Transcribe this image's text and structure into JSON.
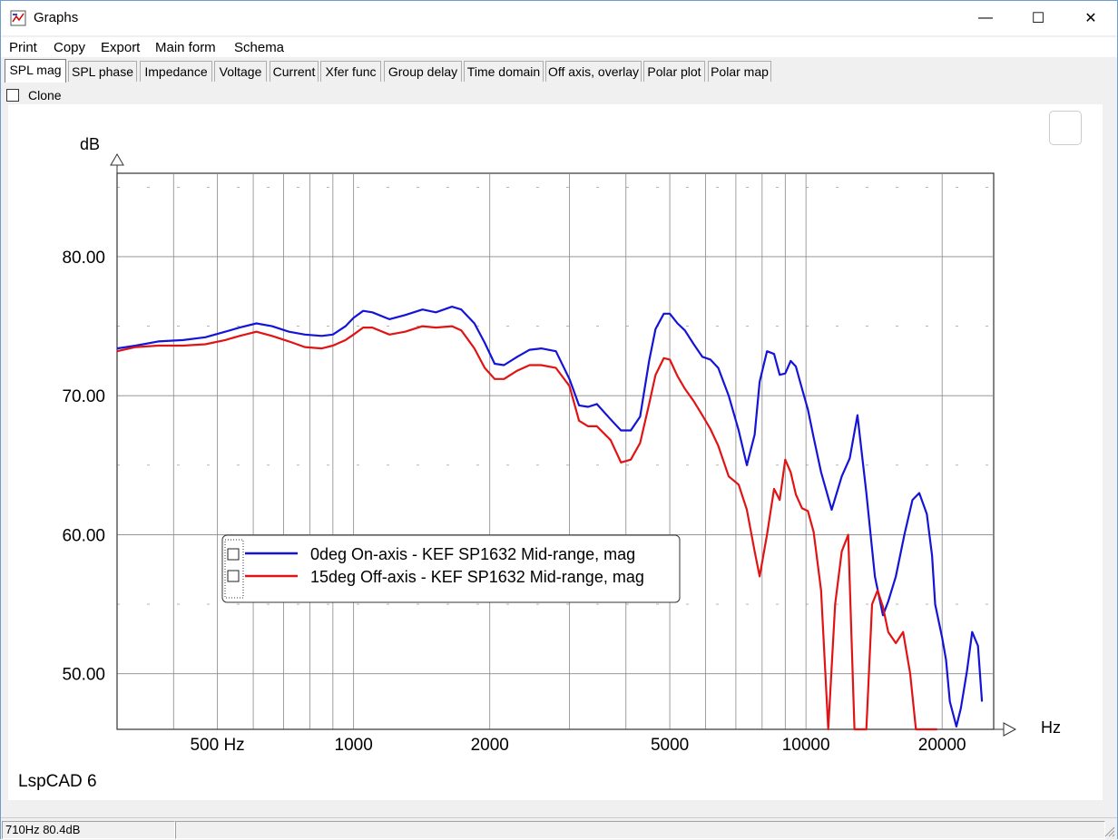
{
  "window": {
    "title": "Graphs",
    "minimize": "—",
    "maximize": "☐",
    "close": "✕"
  },
  "menu": [
    "Print",
    "Copy",
    "Export",
    "Main form",
    "Schema"
  ],
  "tabs": [
    "SPL mag",
    "SPL phase",
    "Impedance",
    "Voltage",
    "Current",
    "Xfer func",
    "Group delay",
    "Time domain",
    "Off axis, overlay",
    "Polar plot",
    "Polar map"
  ],
  "active_tab": "SPL mag",
  "clone_label": "Clone",
  "watermark": "LspCAD 6",
  "status": {
    "readout": "710Hz 80.4dB",
    "secondary": ""
  },
  "colors": {
    "series1": "#1414d8",
    "series2": "#e01414",
    "grid": "#888888"
  },
  "chart_data": {
    "type": "line",
    "xscale": "log",
    "xlabel": "Hz",
    "ylabel": "dB",
    "xlim": [
      300,
      26000
    ],
    "ylim": [
      46,
      86
    ],
    "yticks": [
      50,
      60,
      70,
      80
    ],
    "ytick_labels": [
      "50.00",
      "60.00",
      "70.00",
      "80.00"
    ],
    "xticks": [
      500,
      1000,
      2000,
      5000,
      10000,
      20000
    ],
    "xtick_labels": [
      "500 Hz",
      "1000",
      "2000",
      "5000",
      "10000",
      "20000"
    ],
    "legend": "inside-lower-left",
    "series": [
      {
        "name": "0deg On-axis - KEF SP1632 Mid-range, mag",
        "x": [
          300,
          330,
          370,
          420,
          470,
          520,
          560,
          610,
          660,
          720,
          780,
          850,
          900,
          960,
          1000,
          1050,
          1100,
          1200,
          1300,
          1420,
          1520,
          1650,
          1730,
          1850,
          1950,
          2050,
          2150,
          2300,
          2450,
          2600,
          2800,
          3000,
          3150,
          3300,
          3450,
          3700,
          3900,
          4100,
          4300,
          4500,
          4650,
          4850,
          5000,
          5200,
          5400,
          5650,
          5900,
          6150,
          6400,
          6750,
          7100,
          7400,
          7700,
          7900,
          8200,
          8500,
          8750,
          9000,
          9250,
          9500,
          9800,
          10100,
          10400,
          10800,
          11400,
          12000,
          12500,
          13000,
          13600,
          14200,
          14800,
          15200,
          15800,
          16500,
          17200,
          17800,
          18500,
          19000,
          19300,
          20000,
          20400,
          20800,
          21500,
          22000,
          22700,
          23300,
          24000,
          24500
        ],
        "y": [
          73.4,
          73.6,
          73.9,
          74.0,
          74.2,
          74.6,
          74.9,
          75.2,
          75.0,
          74.6,
          74.4,
          74.3,
          74.4,
          75.0,
          75.6,
          76.1,
          76.0,
          75.5,
          75.8,
          76.2,
          76.0,
          76.4,
          76.2,
          75.2,
          73.8,
          72.3,
          72.2,
          72.8,
          73.3,
          73.4,
          73.2,
          71.2,
          69.3,
          69.2,
          69.4,
          68.3,
          67.5,
          67.5,
          68.5,
          72.5,
          74.8,
          75.9,
          75.9,
          75.2,
          74.7,
          73.7,
          72.8,
          72.6,
          72.0,
          70.0,
          67.5,
          65.0,
          67.2,
          71.0,
          73.2,
          73.0,
          71.5,
          71.6,
          72.5,
          72.1,
          70.5,
          69.0,
          67.0,
          64.5,
          61.8,
          64.2,
          65.5,
          68.6,
          63.0,
          57.0,
          54.2,
          55.2,
          57.0,
          60.0,
          62.5,
          63.0,
          61.5,
          58.5,
          55.0,
          52.6,
          51.0,
          48.0,
          46.2,
          47.5,
          50.2,
          53.0,
          52.0,
          48.0
        ]
      },
      {
        "name": "15deg Off-axis - KEF SP1632 Mid-range, mag",
        "x": [
          300,
          330,
          370,
          420,
          470,
          520,
          560,
          610,
          660,
          720,
          780,
          850,
          900,
          960,
          1000,
          1050,
          1100,
          1200,
          1300,
          1420,
          1520,
          1650,
          1730,
          1850,
          1950,
          2050,
          2150,
          2300,
          2450,
          2600,
          2800,
          3000,
          3150,
          3300,
          3450,
          3700,
          3900,
          4100,
          4300,
          4500,
          4650,
          4850,
          5000,
          5200,
          5400,
          5650,
          5900,
          6150,
          6400,
          6750,
          7100,
          7400,
          7700,
          7900,
          8200,
          8500,
          8750,
          9000,
          9250,
          9500,
          9800,
          10100,
          10400,
          10800,
          11200,
          11600,
          12000,
          12400,
          12800,
          13200,
          13600,
          14000,
          14400,
          14800,
          15200,
          15800,
          16400,
          17000,
          17500,
          18000,
          18500,
          19000,
          19500
        ],
        "y": [
          73.2,
          73.5,
          73.6,
          73.6,
          73.7,
          74.0,
          74.3,
          74.6,
          74.3,
          73.9,
          73.5,
          73.4,
          73.6,
          74.0,
          74.4,
          74.9,
          74.9,
          74.4,
          74.6,
          75.0,
          74.9,
          75.0,
          74.7,
          73.4,
          72.0,
          71.2,
          71.2,
          71.8,
          72.2,
          72.2,
          72.0,
          70.7,
          68.2,
          67.8,
          67.8,
          66.8,
          65.2,
          65.4,
          66.6,
          69.4,
          71.5,
          72.7,
          72.6,
          71.4,
          70.5,
          69.6,
          68.6,
          67.6,
          66.4,
          64.2,
          63.6,
          61.8,
          58.8,
          57.0,
          60.0,
          63.3,
          62.5,
          65.4,
          64.5,
          62.9,
          61.9,
          61.7,
          60.2,
          56.0,
          46.0,
          55.0,
          58.8,
          60.0,
          46.0,
          46.0,
          46.0,
          55.0,
          56.0,
          54.8,
          53.0,
          52.2,
          53.0,
          50.0,
          46.0,
          46.0,
          46.0,
          46.0,
          46.0
        ]
      }
    ]
  }
}
